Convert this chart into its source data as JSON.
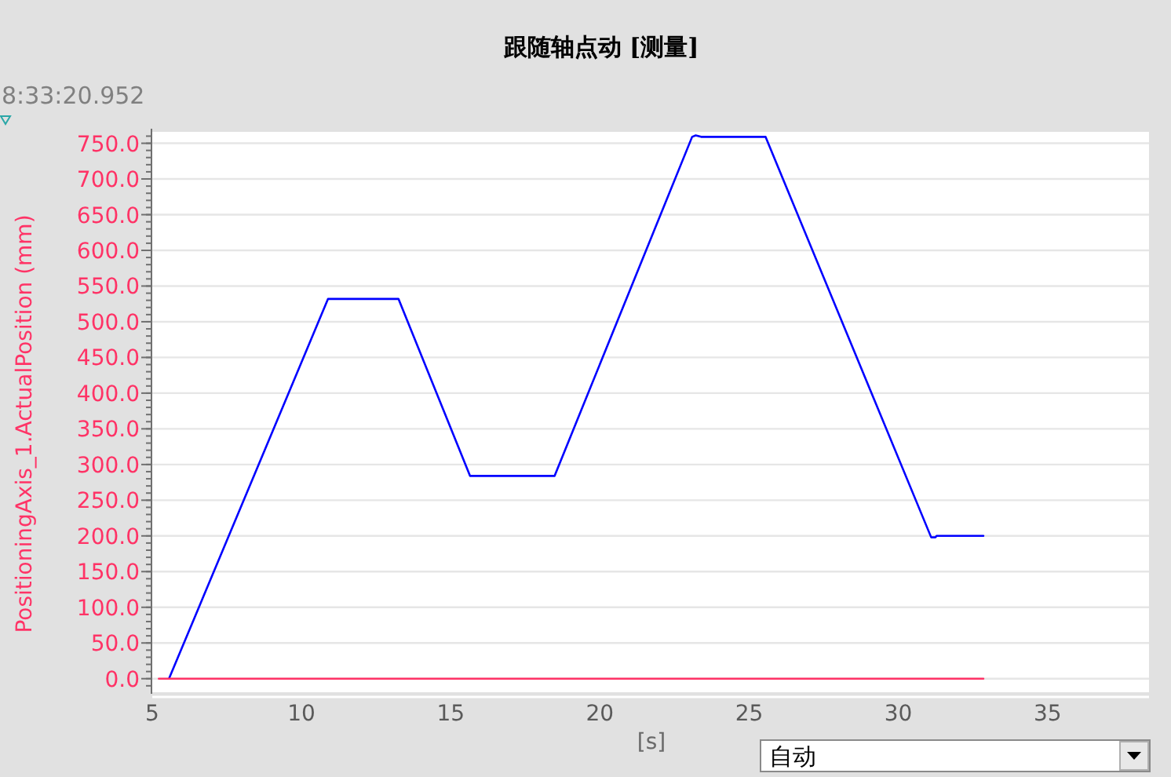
{
  "chart_data": {
    "type": "line",
    "title": "跟随轴点动 [测量]",
    "xlabel": "[s]",
    "ylabel": "PositioningAxis_1.ActualPosition (mm)",
    "annotations": [
      "8:33:20.952",
      "自动"
    ],
    "xlim": [
      5,
      38.4
    ],
    "ylim": [
      -19,
      766
    ],
    "xticks": [
      5,
      10,
      15,
      20,
      25,
      30,
      35
    ],
    "yticks": [
      {
        "value": 0,
        "label": "0.0"
      },
      {
        "value": 50,
        "label": "50.0"
      },
      {
        "value": 100,
        "label": "100.0"
      },
      {
        "value": 150,
        "label": "150.0"
      },
      {
        "value": 200,
        "label": "200.0"
      },
      {
        "value": 250,
        "label": "250.0"
      },
      {
        "value": 300,
        "label": "300.0"
      },
      {
        "value": 350,
        "label": "350.0"
      },
      {
        "value": 400,
        "label": "400.0"
      },
      {
        "value": 450,
        "label": "450.0"
      },
      {
        "value": 500,
        "label": "500.0"
      },
      {
        "value": 550,
        "label": "550.0"
      },
      {
        "value": 600,
        "label": "600.0"
      },
      {
        "value": 650,
        "label": "650.0"
      },
      {
        "value": 700,
        "label": "700.0"
      },
      {
        "value": 750,
        "label": "750.0"
      }
    ],
    "grid": "y",
    "series": [
      {
        "color": "#0000ff",
        "x": [
          5.56,
          10.89,
          13.25,
          15.65,
          18.48,
          23.09,
          23.21,
          23.39,
          25.55,
          31.1,
          31.24,
          31.28,
          32.85
        ],
        "values": [
          0,
          532,
          532,
          284,
          284,
          759,
          761,
          759,
          759,
          198,
          198,
          200,
          200
        ]
      },
      {
        "color": "#ff3366",
        "x": [
          5.22,
          32.85
        ],
        "values": [
          0,
          0
        ]
      }
    ]
  }
}
